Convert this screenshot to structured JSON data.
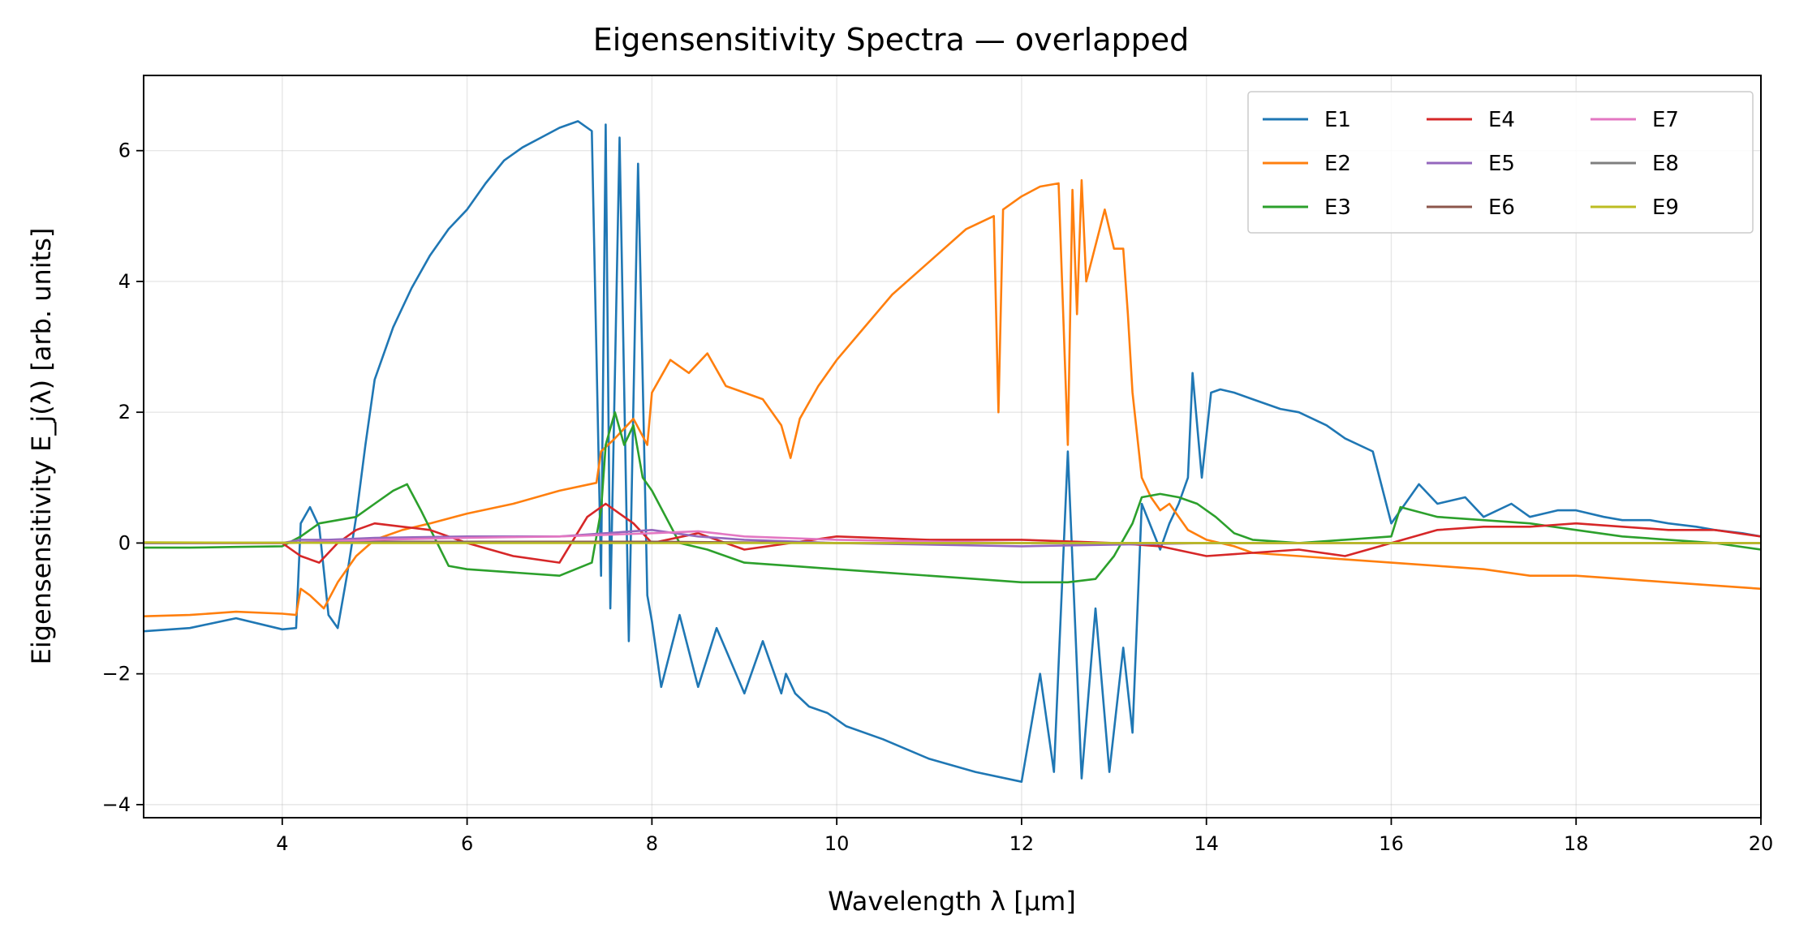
{
  "chart_data": {
    "type": "line",
    "title": "Eigensensitivity Spectra — overlapped",
    "xlabel": "Wavelength λ [µm]",
    "ylabel": "Eigensensitivity E_j(λ) [arb. units]",
    "xlim": [
      2.5,
      20
    ],
    "ylim": [
      -4.2,
      7.15
    ],
    "xticks": [
      4,
      6,
      8,
      10,
      12,
      14,
      16,
      18,
      20
    ],
    "xtick_labels": [
      "4",
      "6",
      "8",
      "10",
      "12",
      "14",
      "16",
      "18",
      "20"
    ],
    "yticks": [
      -4,
      -2,
      0,
      2,
      4,
      6
    ],
    "ytick_labels": [
      "−4",
      "−2",
      "0",
      "2",
      "4",
      "6"
    ],
    "grid": true,
    "legend": {
      "placement": "top-right",
      "columns": 3
    },
    "series": [
      {
        "name": "E1",
        "color": "#1f77b4",
        "x": [
          2.5,
          3.0,
          3.5,
          4.0,
          4.15,
          4.2,
          4.3,
          4.4,
          4.5,
          4.6,
          4.7,
          4.8,
          4.9,
          5.0,
          5.2,
          5.4,
          5.6,
          5.8,
          6.0,
          6.2,
          6.4,
          6.6,
          6.8,
          7.0,
          7.2,
          7.35,
          7.45,
          7.5,
          7.55,
          7.65,
          7.75,
          7.85,
          7.95,
          8.0,
          8.1,
          8.3,
          8.5,
          8.7,
          9.0,
          9.2,
          9.4,
          9.45,
          9.55,
          9.7,
          9.9,
          10.1,
          10.5,
          11.0,
          11.5,
          12.0,
          12.2,
          12.35,
          12.5,
          12.65,
          12.8,
          12.95,
          13.1,
          13.2,
          13.3,
          13.5,
          13.6,
          13.7,
          13.8,
          13.85,
          13.95,
          14.05,
          14.15,
          14.3,
          14.5,
          14.8,
          15.0,
          15.3,
          15.5,
          15.8,
          16.0,
          16.3,
          16.5,
          16.8,
          17.0,
          17.3,
          17.5,
          17.8,
          18.0,
          18.3,
          18.5,
          18.8,
          19.0,
          19.3,
          19.5,
          19.8,
          20.0
        ],
        "y": [
          -1.35,
          -1.3,
          -1.15,
          -1.32,
          -1.3,
          0.3,
          0.55,
          0.25,
          -1.1,
          -1.3,
          -0.5,
          0.4,
          1.5,
          2.5,
          3.3,
          3.9,
          4.4,
          4.8,
          5.1,
          5.5,
          5.85,
          6.05,
          6.2,
          6.35,
          6.45,
          6.3,
          -0.5,
          6.4,
          -1.0,
          6.2,
          -1.5,
          5.8,
          -0.8,
          -1.2,
          -2.2,
          -1.1,
          -2.2,
          -1.3,
          -2.3,
          -1.5,
          -2.3,
          -2.0,
          -2.3,
          -2.5,
          -2.6,
          -2.8,
          -3.0,
          -3.3,
          -3.5,
          -3.65,
          -2.0,
          -3.5,
          1.4,
          -3.6,
          -1.0,
          -3.5,
          -1.6,
          -2.9,
          0.6,
          -0.1,
          0.3,
          0.6,
          1.0,
          2.6,
          1.0,
          2.3,
          2.35,
          2.3,
          2.2,
          2.05,
          2.0,
          1.8,
          1.6,
          1.4,
          0.3,
          0.9,
          0.6,
          0.7,
          0.4,
          0.6,
          0.4,
          0.5,
          0.5,
          0.4,
          0.35,
          0.35,
          0.3,
          0.25,
          0.2,
          0.15,
          0.1
        ]
      },
      {
        "name": "E2",
        "color": "#ff7f0e",
        "x": [
          2.5,
          3.0,
          3.5,
          4.0,
          4.15,
          4.2,
          4.3,
          4.45,
          4.6,
          4.8,
          5.0,
          5.3,
          5.6,
          6.0,
          6.5,
          7.0,
          7.4,
          7.45,
          7.6,
          7.8,
          7.95,
          8.0,
          8.2,
          8.4,
          8.6,
          8.8,
          9.0,
          9.2,
          9.4,
          9.5,
          9.6,
          9.8,
          10.0,
          10.3,
          10.6,
          11.0,
          11.4,
          11.7,
          11.75,
          11.8,
          12.0,
          12.2,
          12.4,
          12.5,
          12.55,
          12.6,
          12.65,
          12.7,
          12.9,
          13.0,
          13.1,
          13.15,
          13.2,
          13.3,
          13.4,
          13.5,
          13.6,
          13.8,
          14.0,
          14.3,
          14.5,
          15.0,
          15.5,
          16.0,
          16.5,
          17.0,
          17.5,
          18.0,
          18.5,
          19.0,
          19.5,
          20.0
        ],
        "y": [
          -1.12,
          -1.1,
          -1.05,
          -1.08,
          -1.1,
          -0.7,
          -0.8,
          -1.0,
          -0.6,
          -0.2,
          0.05,
          0.2,
          0.3,
          0.45,
          0.6,
          0.8,
          0.92,
          1.4,
          1.6,
          1.9,
          1.5,
          2.3,
          2.8,
          2.6,
          2.9,
          2.4,
          2.3,
          2.2,
          1.8,
          1.3,
          1.9,
          2.4,
          2.8,
          3.3,
          3.8,
          4.3,
          4.8,
          5.0,
          2.0,
          5.1,
          5.3,
          5.45,
          5.5,
          1.5,
          5.4,
          3.5,
          5.55,
          4.0,
          5.1,
          4.5,
          4.5,
          3.5,
          2.3,
          1.0,
          0.7,
          0.5,
          0.6,
          0.2,
          0.05,
          -0.05,
          -0.15,
          -0.2,
          -0.25,
          -0.3,
          -0.35,
          -0.4,
          -0.5,
          -0.5,
          -0.55,
          -0.6,
          -0.65,
          -0.7
        ]
      },
      {
        "name": "E3",
        "color": "#2ca02c",
        "x": [
          2.5,
          3.0,
          3.5,
          4.0,
          4.2,
          4.4,
          4.6,
          4.8,
          5.0,
          5.2,
          5.35,
          5.5,
          5.8,
          6.0,
          6.5,
          7.0,
          7.35,
          7.45,
          7.5,
          7.6,
          7.7,
          7.8,
          7.9,
          8.0,
          8.3,
          8.6,
          9.0,
          9.5,
          10.0,
          10.5,
          11.0,
          11.5,
          12.0,
          12.5,
          12.8,
          13.0,
          13.2,
          13.3,
          13.5,
          13.7,
          13.9,
          14.1,
          14.3,
          14.5,
          15.0,
          15.5,
          16.0,
          16.1,
          16.5,
          17.0,
          17.5,
          18.0,
          18.5,
          19.0,
          19.5,
          20.0
        ],
        "y": [
          -0.07,
          -0.07,
          -0.06,
          -0.05,
          0.1,
          0.3,
          0.35,
          0.4,
          0.6,
          0.8,
          0.9,
          0.5,
          -0.35,
          -0.4,
          -0.45,
          -0.5,
          -0.3,
          0.5,
          1.5,
          2.0,
          1.5,
          1.8,
          1.0,
          0.8,
          0.0,
          -0.1,
          -0.3,
          -0.35,
          -0.4,
          -0.45,
          -0.5,
          -0.55,
          -0.6,
          -0.6,
          -0.55,
          -0.2,
          0.3,
          0.7,
          0.75,
          0.7,
          0.6,
          0.4,
          0.15,
          0.05,
          0.0,
          0.05,
          0.1,
          0.55,
          0.4,
          0.35,
          0.3,
          0.2,
          0.1,
          0.05,
          0.0,
          -0.1
        ]
      },
      {
        "name": "E4",
        "color": "#d62728",
        "x": [
          2.5,
          3.0,
          4.0,
          4.2,
          4.4,
          4.6,
          4.8,
          5.0,
          5.3,
          5.6,
          6.0,
          6.5,
          7.0,
          7.3,
          7.5,
          7.8,
          8.0,
          8.5,
          9.0,
          10.0,
          11.0,
          12.0,
          13.0,
          13.5,
          14.0,
          14.5,
          15.0,
          15.5,
          16.0,
          16.5,
          17.0,
          17.5,
          18.0,
          18.5,
          19.0,
          19.5,
          20.0
        ],
        "y": [
          0.0,
          0.0,
          0.0,
          -0.2,
          -0.3,
          0.0,
          0.2,
          0.3,
          0.25,
          0.2,
          0.0,
          -0.2,
          -0.3,
          0.4,
          0.6,
          0.3,
          0.0,
          0.15,
          -0.1,
          0.1,
          0.05,
          0.05,
          0.0,
          -0.05,
          -0.2,
          -0.15,
          -0.1,
          -0.2,
          0.0,
          0.2,
          0.25,
          0.25,
          0.3,
          0.25,
          0.2,
          0.2,
          0.1
        ]
      },
      {
        "name": "E5",
        "color": "#9467bd",
        "x": [
          2.5,
          4.0,
          4.2,
          4.5,
          5.0,
          6.0,
          7.0,
          7.5,
          8.0,
          8.5,
          9.0,
          10.0,
          12.0,
          14.0,
          16.0,
          18.0,
          20.0
        ],
        "y": [
          0.0,
          0.0,
          0.05,
          0.05,
          0.08,
          0.1,
          0.1,
          0.15,
          0.2,
          0.1,
          0.05,
          0.0,
          -0.05,
          0.0,
          0.0,
          0.0,
          0.0
        ]
      },
      {
        "name": "E6",
        "color": "#8c564b",
        "x": [
          2.5,
          4.0,
          5.0,
          6.0,
          8.0,
          10.0,
          12.0,
          14.0,
          16.0,
          18.0,
          20.0
        ],
        "y": [
          0.0,
          0.0,
          0.02,
          0.02,
          0.02,
          0.0,
          0.0,
          0.0,
          0.0,
          0.0,
          0.0
        ]
      },
      {
        "name": "E7",
        "color": "#e377c2",
        "x": [
          2.5,
          4.0,
          5.0,
          6.0,
          7.0,
          8.0,
          8.5,
          9.0,
          10.0,
          12.0,
          14.0,
          16.0,
          18.0,
          20.0
        ],
        "y": [
          0.0,
          0.0,
          0.05,
          0.08,
          0.1,
          0.15,
          0.18,
          0.1,
          0.05,
          0.0,
          0.0,
          0.0,
          0.0,
          0.0
        ]
      },
      {
        "name": "E8",
        "color": "#7f7f7f",
        "x": [
          2.5,
          5.0,
          10.0,
          15.0,
          20.0
        ],
        "y": [
          0.0,
          0.01,
          0.0,
          0.0,
          0.0
        ]
      },
      {
        "name": "E9",
        "color": "#bcbd22",
        "x": [
          2.5,
          5.0,
          10.0,
          15.0,
          20.0
        ],
        "y": [
          0.01,
          0.0,
          0.0,
          0.0,
          0.0
        ]
      }
    ]
  }
}
